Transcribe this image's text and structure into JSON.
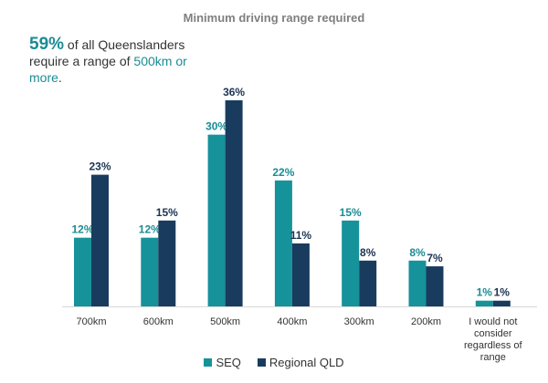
{
  "callout": {
    "percent": "59%",
    "text_before": " of all Queenslanders require a range of ",
    "highlight": "500km or more",
    "text_after": "."
  },
  "colors": {
    "seq": "#16929b",
    "regional": "#193c5e",
    "seq_label": "#1a8c94",
    "regional_label": "#1b3352"
  },
  "chart_data": {
    "type": "bar",
    "title": "Minimum driving range required",
    "xlabel": "",
    "ylabel": "",
    "categories": [
      [
        "700km"
      ],
      [
        "600km"
      ],
      [
        "500km"
      ],
      [
        "400km"
      ],
      [
        "300km"
      ],
      [
        "200km"
      ],
      [
        "I would not",
        "consider",
        "regardless of",
        "range"
      ]
    ],
    "series": [
      {
        "name": "SEQ",
        "values": [
          12,
          12,
          30,
          22,
          15,
          8,
          1
        ]
      },
      {
        "name": "Regional QLD",
        "values": [
          23,
          15,
          36,
          11,
          8,
          7,
          1
        ]
      }
    ],
    "value_suffix": "%",
    "ylim": [
      0,
      36
    ],
    "grid": false,
    "legend": "bottom"
  }
}
